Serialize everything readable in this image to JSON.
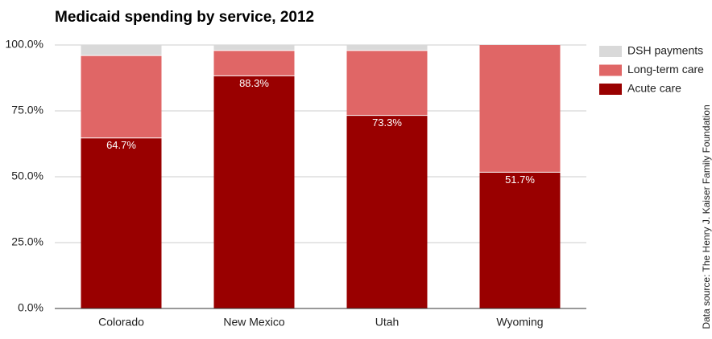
{
  "chart_data": {
    "type": "stacked_bar",
    "title": "Medicaid spending by service, 2012",
    "source": "Data source: The Henry J. Kaiser Family Foundation",
    "categories": [
      "Colorado",
      "New Mexico",
      "Utah",
      "Wyoming"
    ],
    "series": [
      {
        "name": "Acute care",
        "color": "#990000",
        "values": [
          64.7,
          88.3,
          73.3,
          51.7
        ],
        "value_labels": [
          "64.7%",
          "88.3%",
          "73.3%",
          "51.7%"
        ]
      },
      {
        "name": "Long-term care",
        "color": "#e06666",
        "values": [
          31.3,
          9.6,
          24.6,
          48.3
        ]
      },
      {
        "name": "DSH payments",
        "color": "#d9d9d9",
        "values": [
          4.0,
          2.1,
          2.1,
          0
        ]
      }
    ],
    "ylim": [
      0,
      100
    ],
    "yticks": [
      {
        "value": 0,
        "label": "0.0%"
      },
      {
        "value": 25,
        "label": "25.0%"
      },
      {
        "value": 50,
        "label": "50.0%"
      },
      {
        "value": 75,
        "label": "75.0%"
      },
      {
        "value": 100,
        "label": "100.0%"
      }
    ],
    "grid": true,
    "legend": "right"
  }
}
